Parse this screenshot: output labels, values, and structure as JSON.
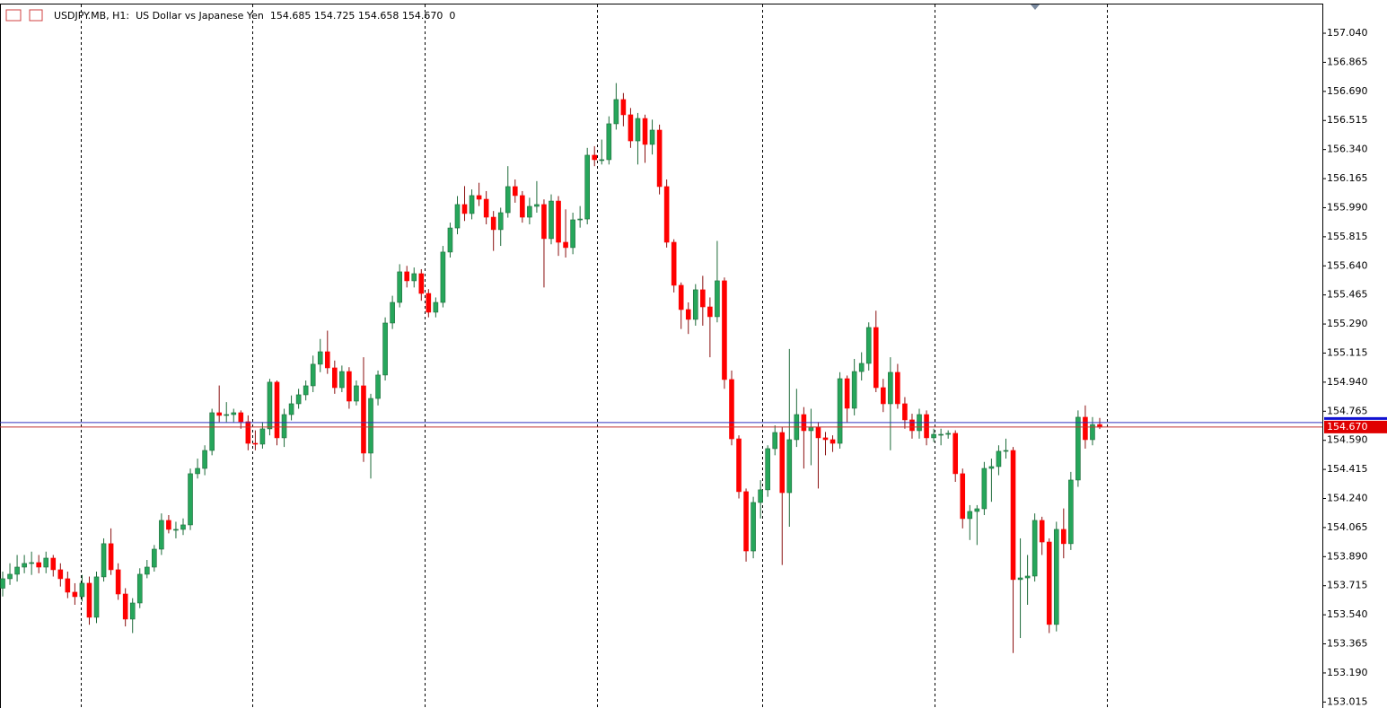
{
  "chart_data": {
    "type": "candlestick",
    "title": "USDJPY.MB, H1:  US Dollar vs Japanese Yen  154.685 154.725 154.658 154.670  0",
    "up_color": "#26a65b",
    "down_color": "#ff0000",
    "ylim": [
      152.979,
      157.213
    ],
    "yticks": [
      {
        "value": 157.04,
        "label": "157.040"
      },
      156.865,
      {
        "value": 156.69,
        "label": "156.690"
      },
      156.515,
      {
        "value": 156.34,
        "label": "156.340"
      },
      156.165,
      {
        "value": 155.99,
        "label": "155.990"
      },
      155.815,
      {
        "value": 155.64,
        "label": "155.640"
      },
      155.465,
      {
        "value": 155.29,
        "label": "155.290"
      },
      155.115,
      {
        "value": 154.94,
        "label": "154.940"
      },
      154.765,
      {
        "value": 154.59,
        "label": "154.590"
      },
      154.415,
      {
        "value": 154.24,
        "label": "154.240"
      },
      154.065,
      {
        "value": 153.89,
        "label": "153.890"
      },
      153.715,
      {
        "value": 153.54,
        "label": "153.540"
      },
      153.365,
      {
        "value": 153.19,
        "label": "153.190"
      },
      153.015
    ],
    "current_price": {
      "value": 154.67,
      "label": "154.670"
    },
    "ask": 154.697,
    "ohlc": [
      [
        153.7,
        153.8,
        153.65,
        153.757
      ],
      [
        153.757,
        153.85,
        153.72,
        153.784
      ],
      [
        153.784,
        153.9,
        153.74,
        153.827
      ],
      [
        153.827,
        153.9,
        153.79,
        153.849
      ],
      [
        153.849,
        153.92,
        153.78,
        153.854
      ],
      [
        153.854,
        153.9,
        153.79,
        153.827
      ],
      [
        153.827,
        153.92,
        153.79,
        153.881
      ],
      [
        153.881,
        153.9,
        153.77,
        153.811
      ],
      [
        153.811,
        153.85,
        153.71,
        153.757
      ],
      [
        153.757,
        153.8,
        153.64,
        153.676
      ],
      [
        153.676,
        153.73,
        153.6,
        153.649
      ],
      [
        153.649,
        153.78,
        153.62,
        153.73
      ],
      [
        153.73,
        153.77,
        153.48,
        153.525
      ],
      [
        153.525,
        153.8,
        153.49,
        153.768
      ],
      [
        153.768,
        154.0,
        153.74,
        153.968
      ],
      [
        153.968,
        154.06,
        153.78,
        153.811
      ],
      [
        153.811,
        153.85,
        153.63,
        153.665
      ],
      [
        153.665,
        153.7,
        153.47,
        153.514
      ],
      [
        153.514,
        153.64,
        153.43,
        153.611
      ],
      [
        153.611,
        153.82,
        153.58,
        153.784
      ],
      [
        153.784,
        153.87,
        153.76,
        153.827
      ],
      [
        153.827,
        153.96,
        153.8,
        153.935
      ],
      [
        153.935,
        154.15,
        153.9,
        154.108
      ],
      [
        154.108,
        154.14,
        154.03,
        154.054
      ],
      [
        154.054,
        154.1,
        154.0,
        154.054
      ],
      [
        154.054,
        154.12,
        154.02,
        154.081
      ],
      [
        154.081,
        154.42,
        154.05,
        154.389
      ],
      [
        154.389,
        154.48,
        154.36,
        154.421
      ],
      [
        154.421,
        154.56,
        154.38,
        154.529
      ],
      [
        154.529,
        154.78,
        154.5,
        154.756
      ],
      [
        154.756,
        154.92,
        154.7,
        154.74
      ],
      [
        154.74,
        154.82,
        154.7,
        154.745
      ],
      [
        154.745,
        154.78,
        154.7,
        154.756
      ],
      [
        154.756,
        154.77,
        154.66,
        154.702
      ],
      [
        154.702,
        154.74,
        154.53,
        154.572
      ],
      [
        154.572,
        154.65,
        154.53,
        154.567
      ],
      [
        154.567,
        154.7,
        154.54,
        154.659
      ],
      [
        154.659,
        154.96,
        154.62,
        154.94
      ],
      [
        154.94,
        154.95,
        154.56,
        154.605
      ],
      [
        154.605,
        154.78,
        154.55,
        154.745
      ],
      [
        154.745,
        154.86,
        154.71,
        154.81
      ],
      [
        154.81,
        154.9,
        154.78,
        154.864
      ],
      [
        154.864,
        154.95,
        154.83,
        154.918
      ],
      [
        154.918,
        155.1,
        154.88,
        155.048
      ],
      [
        155.048,
        155.2,
        155.0,
        155.123
      ],
      [
        155.123,
        155.25,
        154.99,
        155.026
      ],
      [
        155.026,
        155.07,
        154.87,
        154.907
      ],
      [
        154.907,
        155.04,
        154.88,
        155.004
      ],
      [
        155.004,
        155.03,
        154.78,
        154.826
      ],
      [
        154.826,
        154.95,
        154.8,
        154.918
      ],
      [
        154.918,
        155.09,
        154.46,
        154.513
      ],
      [
        154.513,
        154.87,
        154.36,
        154.842
      ],
      [
        154.842,
        155.01,
        154.8,
        154.983
      ],
      [
        154.983,
        155.33,
        154.95,
        155.296
      ],
      [
        155.296,
        155.46,
        155.26,
        155.42
      ],
      [
        155.42,
        155.65,
        155.39,
        155.604
      ],
      [
        155.604,
        155.64,
        155.51,
        155.55
      ],
      [
        155.55,
        155.63,
        155.51,
        155.593
      ],
      [
        155.593,
        155.62,
        155.43,
        155.474
      ],
      [
        155.474,
        155.5,
        155.33,
        155.361
      ],
      [
        155.361,
        155.45,
        155.33,
        155.42
      ],
      [
        155.42,
        155.76,
        155.39,
        155.723
      ],
      [
        155.723,
        155.9,
        155.69,
        155.868
      ],
      [
        155.868,
        156.06,
        155.83,
        156.009
      ],
      [
        156.009,
        156.12,
        155.91,
        155.955
      ],
      [
        155.955,
        156.1,
        155.92,
        156.063
      ],
      [
        156.063,
        156.14,
        156.0,
        156.041
      ],
      [
        156.041,
        156.09,
        155.89,
        155.933
      ],
      [
        155.933,
        155.97,
        155.73,
        155.858
      ],
      [
        155.858,
        155.99,
        155.76,
        155.96
      ],
      [
        155.96,
        156.24,
        155.93,
        156.117
      ],
      [
        156.117,
        156.16,
        156.02,
        156.063
      ],
      [
        156.063,
        156.09,
        155.9,
        155.933
      ],
      [
        155.933,
        156.05,
        155.89,
        155.998
      ],
      [
        155.998,
        156.15,
        155.96,
        156.009
      ],
      [
        156.009,
        156.04,
        155.51,
        155.804
      ],
      [
        155.804,
        156.07,
        155.77,
        156.03
      ],
      [
        156.03,
        156.06,
        155.7,
        155.782
      ],
      [
        155.782,
        155.98,
        155.69,
        155.75
      ],
      [
        155.75,
        155.96,
        155.71,
        155.917
      ],
      [
        155.917,
        156.0,
        155.87,
        155.922
      ],
      [
        155.922,
        156.35,
        155.89,
        156.306
      ],
      [
        156.306,
        156.36,
        156.24,
        156.279
      ],
      [
        156.279,
        156.4,
        156.25,
        156.279
      ],
      [
        156.279,
        156.54,
        156.25,
        156.495
      ],
      [
        156.495,
        156.74,
        156.46,
        156.641
      ],
      [
        156.641,
        156.68,
        156.48,
        156.549
      ],
      [
        156.549,
        156.59,
        156.35,
        156.392
      ],
      [
        156.392,
        156.56,
        156.25,
        156.527
      ],
      [
        156.527,
        156.55,
        156.26,
        156.371
      ],
      [
        156.371,
        156.52,
        156.31,
        156.457
      ],
      [
        156.457,
        156.49,
        156.07,
        156.117
      ],
      [
        156.117,
        156.16,
        155.75,
        155.782
      ],
      [
        155.782,
        155.8,
        155.48,
        155.523
      ],
      [
        155.523,
        155.54,
        155.26,
        155.377
      ],
      [
        155.377,
        155.42,
        155.23,
        155.318
      ],
      [
        155.318,
        155.53,
        155.28,
        155.496
      ],
      [
        155.496,
        155.58,
        155.28,
        155.393
      ],
      [
        155.393,
        155.45,
        155.09,
        155.334
      ],
      [
        155.334,
        155.79,
        155.3,
        155.55
      ],
      [
        155.55,
        155.57,
        154.9,
        154.956
      ],
      [
        154.956,
        155.01,
        154.56,
        154.599
      ],
      [
        154.599,
        154.62,
        154.24,
        154.281
      ],
      [
        154.281,
        154.3,
        153.86,
        153.924
      ],
      [
        153.924,
        154.25,
        153.88,
        154.216
      ],
      [
        154.216,
        154.35,
        154.12,
        154.292
      ],
      [
        154.292,
        154.56,
        154.25,
        154.54
      ],
      [
        154.54,
        154.68,
        154.5,
        154.637
      ],
      [
        154.637,
        154.67,
        153.84,
        154.275
      ],
      [
        154.275,
        155.14,
        154.07,
        154.594
      ],
      [
        154.594,
        154.9,
        154.55,
        154.745
      ],
      [
        154.745,
        154.79,
        154.42,
        154.648
      ],
      [
        154.648,
        154.78,
        154.44,
        154.67
      ],
      [
        154.67,
        154.7,
        154.3,
        154.605
      ],
      [
        154.605,
        154.64,
        154.5,
        154.594
      ],
      [
        154.594,
        154.62,
        154.52,
        154.572
      ],
      [
        154.572,
        155.0,
        154.54,
        154.961
      ],
      [
        154.961,
        154.98,
        154.7,
        154.783
      ],
      [
        154.783,
        155.08,
        154.74,
        155.004
      ],
      [
        155.004,
        155.12,
        154.95,
        155.053
      ],
      [
        155.053,
        155.3,
        155.01,
        155.269
      ],
      [
        155.269,
        155.37,
        154.88,
        154.907
      ],
      [
        154.907,
        154.96,
        154.76,
        154.81
      ],
      [
        154.81,
        155.09,
        154.53,
        154.999
      ],
      [
        154.999,
        155.05,
        154.78,
        154.81
      ],
      [
        154.81,
        154.85,
        154.66,
        154.713
      ],
      [
        154.713,
        154.75,
        154.6,
        154.648
      ],
      [
        154.648,
        154.78,
        154.6,
        154.745
      ],
      [
        154.745,
        154.77,
        154.56,
        154.605
      ],
      [
        154.605,
        154.66,
        154.58,
        154.626
      ],
      [
        154.626,
        154.66,
        154.56,
        154.626
      ],
      [
        154.626,
        154.65,
        154.6,
        154.632
      ],
      [
        154.632,
        154.65,
        154.34,
        154.389
      ],
      [
        154.389,
        154.42,
        154.06,
        154.119
      ],
      [
        154.119,
        154.2,
        153.99,
        154.162
      ],
      [
        154.162,
        154.2,
        153.96,
        154.178
      ],
      [
        154.178,
        154.46,
        154.14,
        154.421
      ],
      [
        154.421,
        154.48,
        154.22,
        154.432
      ],
      [
        154.432,
        154.56,
        154.38,
        154.524
      ],
      [
        154.524,
        154.6,
        154.48,
        154.529
      ],
      [
        154.529,
        154.55,
        153.31,
        153.752
      ],
      [
        153.752,
        154.0,
        153.4,
        153.762
      ],
      [
        153.762,
        153.9,
        153.6,
        153.773
      ],
      [
        153.773,
        154.15,
        153.74,
        154.108
      ],
      [
        154.108,
        154.13,
        153.9,
        153.978
      ],
      [
        153.978,
        154.0,
        153.43,
        153.482
      ],
      [
        153.482,
        154.1,
        153.44,
        154.054
      ],
      [
        154.054,
        154.18,
        153.88,
        153.968
      ],
      [
        153.968,
        154.4,
        153.93,
        154.351
      ],
      [
        154.351,
        154.77,
        154.31,
        154.729
      ],
      [
        154.729,
        154.8,
        154.54,
        154.594
      ],
      [
        154.594,
        154.73,
        154.56,
        154.685
      ],
      [
        154.685,
        154.725,
        154.658,
        154.67
      ]
    ]
  }
}
